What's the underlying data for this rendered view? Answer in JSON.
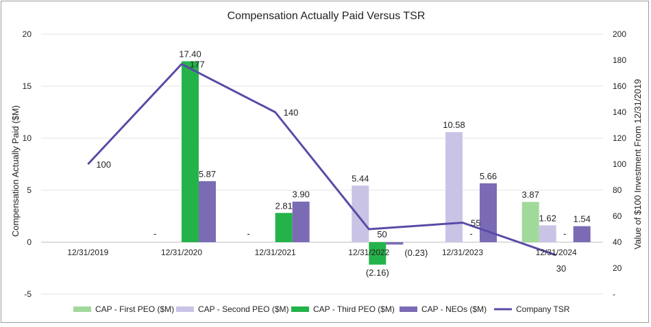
{
  "chart_data": {
    "type": "bar",
    "title": "Compensation Actually Paid Versus TSR",
    "ylabel": "Compensation Actually Paid ($M)",
    "y2label": "Value of $100 Investment From 12/31/2019",
    "ylim": [
      -5,
      20
    ],
    "y2lim": [
      0,
      200
    ],
    "yticks": [
      -5,
      0,
      5,
      10,
      15,
      20
    ],
    "yticklabels": [
      "-5",
      "0",
      "5",
      "10",
      "15",
      "20"
    ],
    "y2ticks": [
      0,
      20,
      40,
      60,
      80,
      100,
      120,
      140,
      160,
      180,
      200
    ],
    "y2ticklabels": [
      "-",
      "20",
      "40",
      "60",
      "80",
      "100",
      "120",
      "140",
      "160",
      "180",
      "200"
    ],
    "categories": [
      "12/31/2019",
      "12/31/2020",
      "12/31/2021",
      "12/31/2022",
      "12/31/2023",
      "12/31/2024"
    ],
    "series": [
      {
        "name": "CAP - First PEO ($M)",
        "color": "#a1d99b",
        "values": [
          null,
          null,
          null,
          null,
          null,
          3.87
        ],
        "labels": [
          "",
          "",
          "",
          "",
          "",
          "3.87"
        ]
      },
      {
        "name": "CAP - Second PEO ($M)",
        "color": "#c9c4e6",
        "values": [
          null,
          null,
          null,
          5.44,
          10.58,
          1.62
        ],
        "labels": [
          "",
          "",
          "",
          "5.44",
          "10.58",
          "1.62"
        ]
      },
      {
        "name": "CAP - Third PEO ($M)",
        "color": "#24b34a",
        "values": [
          null,
          17.4,
          2.81,
          -2.16,
          0,
          0
        ],
        "labels": [
          "",
          "17.40",
          "2.81",
          "(2.16)",
          "-",
          "-"
        ]
      },
      {
        "name": "CAP - NEOs ($M)",
        "color": "#7b6bb5",
        "values": [
          null,
          5.87,
          3.9,
          -0.23,
          5.66,
          1.54
        ],
        "labels": [
          "",
          "5.87",
          "3.90",
          "(0.23)",
          "5.66",
          "1.54"
        ]
      }
    ],
    "dash_labels": [
      {
        "category": "12/31/2020",
        "text": "-"
      },
      {
        "category": "12/31/2021",
        "text": "-"
      }
    ],
    "line": {
      "name": "Company TSR",
      "color": "#5a4aa6",
      "axis": "y2",
      "values": [
        100,
        177,
        140,
        50,
        55,
        30
      ],
      "labels": [
        "100",
        "177",
        "140",
        "50",
        "55",
        "30"
      ]
    },
    "legend_position": "bottom"
  }
}
